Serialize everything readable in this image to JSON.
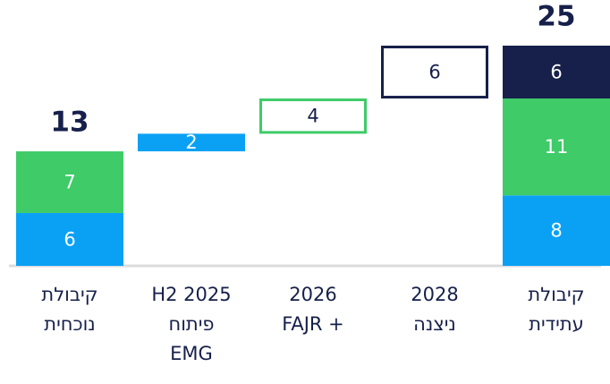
{
  "chart_data": {
    "type": "waterfall",
    "categories": [
      [
        "קיבולת",
        "נוכחית"
      ],
      [
        "H2 2025",
        "פיתוח",
        "EMG"
      ],
      [
        "2026",
        "FAJR +"
      ],
      [
        "2028",
        "ניצנה"
      ],
      [
        "קיבולת",
        "עתידית"
      ]
    ],
    "steps": [
      {
        "kind": "total",
        "total": 13,
        "segments": [
          {
            "value": 6,
            "color": "#0aa1f5",
            "outline": false
          },
          {
            "value": 7,
            "color": "#3ecb68",
            "outline": false
          }
        ]
      },
      {
        "kind": "delta",
        "segments": [
          {
            "value": 2,
            "color": "#0aa1f5",
            "outline": false
          }
        ]
      },
      {
        "kind": "delta",
        "segments": [
          {
            "value": 4,
            "color": "#3ecb68",
            "outline": true
          }
        ]
      },
      {
        "kind": "delta",
        "segments": [
          {
            "value": 6,
            "color": "#16204a",
            "outline": true
          }
        ]
      },
      {
        "kind": "total",
        "total": 25,
        "segments": [
          {
            "value": 8,
            "color": "#0aa1f5",
            "outline": false
          },
          {
            "value": 11,
            "color": "#3ecb68",
            "outline": false
          },
          {
            "value": 6,
            "color": "#16204a",
            "outline": false
          }
        ]
      }
    ],
    "ylim": [
      0,
      25
    ]
  }
}
